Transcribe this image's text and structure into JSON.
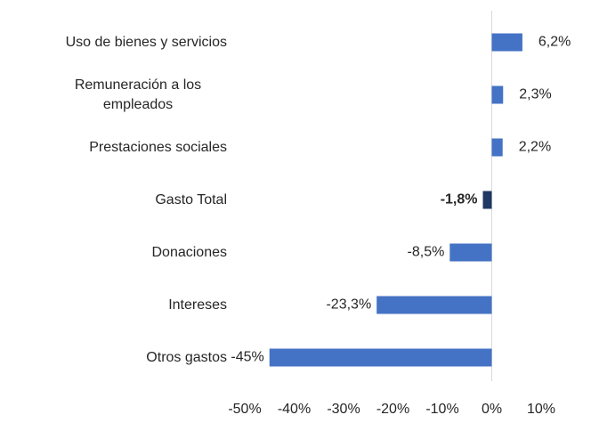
{
  "chart_data": {
    "type": "hbar",
    "categories": [
      "Uso de bienes y servicios",
      "Remuneración a los empleados",
      "Prestaciones sociales",
      "Gasto Total",
      "Donaciones",
      "Intereses",
      "Otros gastos"
    ],
    "values": [
      6.2,
      2.3,
      2.2,
      -1.8,
      -8.5,
      -23.3,
      -45
    ],
    "value_labels": [
      "6,2%",
      "2,3%",
      "2,2%",
      "-1,8%",
      "-8,5%",
      "-23,3%",
      "-45%"
    ],
    "color": "#4472c4",
    "highlight": {
      "index": 3,
      "color": "#1f3864"
    },
    "xlim": [
      -50,
      10
    ],
    "xticks": [
      {
        "value": -50,
        "label": "-50%"
      },
      {
        "value": -40,
        "label": "-40%"
      },
      {
        "value": -30,
        "label": "-30%"
      },
      {
        "value": -20,
        "label": "-20%"
      },
      {
        "value": -10,
        "label": "-10%"
      },
      {
        "value": 0,
        "label": "0%"
      },
      {
        "value": 10,
        "label": "10%"
      }
    ]
  }
}
